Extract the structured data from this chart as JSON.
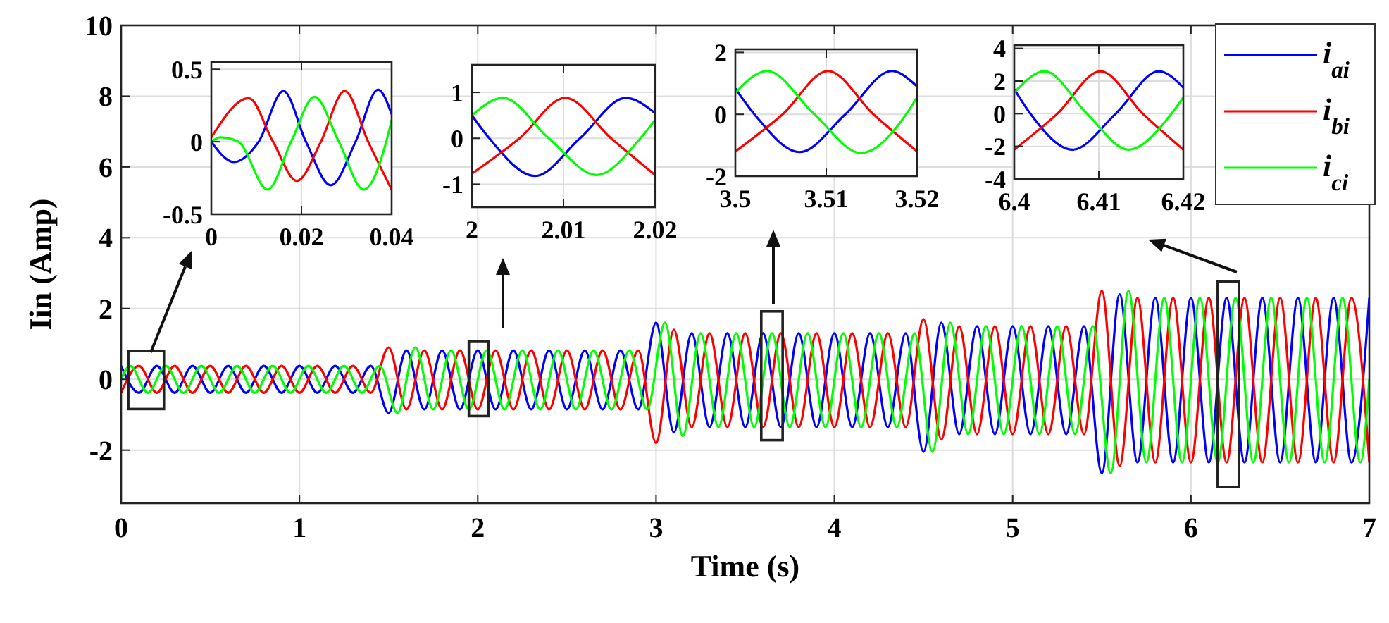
{
  "chart_data": [
    {
      "type": "line",
      "xlabel": "Time (s)",
      "ylabel": "Iin (Amp)",
      "xlim": [
        0,
        7
      ],
      "ylim": [
        -3.5,
        10
      ],
      "xticks": [
        0,
        1,
        2,
        3,
        4,
        5,
        6,
        7
      ],
      "yticks": [
        -2,
        0,
        2,
        4,
        6,
        8,
        10
      ],
      "grid": true,
      "legend": "top right",
      "x": [
        0,
        0.1,
        0.2,
        0.3,
        0.4,
        0.5,
        0.6,
        0.7,
        0.8,
        0.9,
        1,
        1.1,
        1.2,
        1.3,
        1.4,
        1.5,
        1.6,
        1.7,
        1.8,
        1.9,
        2,
        2.1,
        2.2,
        2.3,
        2.4,
        2.5,
        2.6,
        2.7,
        2.8,
        2.9,
        3,
        3.1,
        3.2,
        3.3,
        3.4,
        3.5,
        3.6,
        3.7,
        3.8,
        3.9,
        4,
        4.1,
        4.2,
        4.3,
        4.4,
        4.5,
        4.6,
        4.7,
        4.8,
        4.9,
        5,
        5.1,
        5.2,
        5.3,
        5.4,
        5.5,
        5.6,
        5.7,
        5.8,
        5.9,
        6,
        6.1,
        6.2,
        6.3,
        6.4,
        6.5,
        6.6,
        6.7,
        6.8,
        6.9,
        7
      ],
      "series": [
        {
          "name": "i$_{ai}$",
          "color": "#0000ff",
          "values": [
            0.38,
            -0.38,
            0.38,
            -0.38,
            0.38,
            -0.38,
            0.38,
            -0.38,
            0.38,
            -0.38,
            0.38,
            -0.38,
            0.38,
            -0.38,
            0.38,
            -0.95,
            0.82,
            -0.85,
            0.82,
            -0.85,
            0.82,
            -0.85,
            0.82,
            -0.85,
            0.82,
            -0.85,
            0.82,
            -0.85,
            0.82,
            -0.85,
            1.6,
            -1.5,
            1.3,
            -1.35,
            1.3,
            -1.35,
            1.3,
            -1.35,
            1.3,
            -1.35,
            1.3,
            -1.35,
            1.3,
            -1.35,
            1.3,
            -2.05,
            1.6,
            -1.55,
            1.5,
            -1.55,
            1.5,
            -1.55,
            1.5,
            -1.55,
            1.5,
            -2.65,
            2.4,
            -2.35,
            2.3,
            -2.35,
            2.3,
            -2.35,
            2.3,
            -2.35,
            2.3,
            -2.35,
            2.3,
            -2.35,
            2.3,
            -2.35,
            2.3
          ]
        },
        {
          "name": "i$_{bi}$",
          "color": "#ff0000",
          "values": [
            -0.38,
            0.38,
            -0.38,
            0.38,
            -0.38,
            0.38,
            -0.38,
            0.38,
            -0.38,
            0.38,
            -0.38,
            0.38,
            -0.38,
            0.38,
            -0.38,
            0.9,
            -0.85,
            0.82,
            -0.85,
            0.82,
            -0.85,
            0.82,
            -0.85,
            0.82,
            -0.85,
            0.82,
            -0.85,
            0.82,
            -0.85,
            0.82,
            -1.8,
            1.4,
            -1.35,
            1.3,
            -1.35,
            1.3,
            -1.35,
            1.3,
            -1.35,
            1.3,
            -1.35,
            1.3,
            -1.35,
            1.3,
            -1.35,
            1.7,
            -1.7,
            1.5,
            -1.55,
            1.5,
            -1.55,
            1.5,
            -1.55,
            1.5,
            -1.55,
            2.5,
            -2.45,
            2.3,
            -2.35,
            2.3,
            -2.35,
            2.3,
            -2.35,
            2.3,
            -2.35,
            2.3,
            -2.35,
            2.3,
            -2.35,
            2.3,
            -2.35
          ]
        },
        {
          "name": "i$_{ci}$",
          "color": "#00ff00",
          "x": [
            0,
            0.05,
            0.15,
            0.25,
            0.35,
            0.45,
            0.55,
            0.65,
            0.75,
            0.85,
            0.95,
            1.05,
            1.15,
            1.25,
            1.35,
            1.45,
            1.55,
            1.65,
            1.75,
            1.85,
            1.95,
            2.05,
            2.15,
            2.25,
            2.35,
            2.45,
            2.55,
            2.65,
            2.75,
            2.85,
            2.95,
            3.05,
            3.15,
            3.25,
            3.35,
            3.45,
            3.55,
            3.65,
            3.75,
            3.85,
            3.95,
            4.05,
            4.15,
            4.25,
            4.35,
            4.45,
            4.55,
            4.65,
            4.75,
            4.85,
            4.95,
            5.05,
            5.15,
            5.25,
            5.35,
            5.45,
            5.55,
            5.65,
            5.75,
            5.85,
            5.95,
            6.05,
            6.15,
            6.25,
            6.35,
            6.45,
            6.55,
            6.65,
            6.75,
            6.85,
            6.95,
            7
          ],
          "values": [
            0,
            0.38,
            -0.38,
            0.38,
            -0.38,
            0.38,
            -0.38,
            0.38,
            -0.38,
            0.38,
            -0.38,
            0.38,
            -0.38,
            0.38,
            -0.38,
            0.38,
            -0.95,
            0.9,
            -0.85,
            0.82,
            -0.85,
            0.82,
            -0.85,
            0.82,
            -0.85,
            0.82,
            -0.85,
            0.82,
            -0.85,
            0.82,
            -0.85,
            1.6,
            -1.6,
            1.3,
            -1.35,
            1.3,
            -1.35,
            1.3,
            -1.35,
            1.3,
            -1.35,
            1.3,
            -1.35,
            1.3,
            -1.35,
            1.3,
            -2.05,
            1.6,
            -1.55,
            1.5,
            -1.55,
            1.5,
            -1.55,
            1.5,
            -1.55,
            1.5,
            -2.65,
            2.5,
            -2.35,
            2.3,
            -2.35,
            2.3,
            -2.35,
            2.3,
            -2.35,
            2.3,
            -2.35,
            2.3,
            -2.35,
            2.3,
            -2.35,
            0
          ]
        }
      ]
    },
    {
      "type": "line",
      "xlim": [
        0,
        0.04
      ],
      "ylim": [
        -0.5,
        0.55
      ],
      "xticks": [
        0,
        0.02,
        0.04
      ],
      "yticks": [
        -0.5,
        0,
        0.5
      ],
      "grid": true,
      "series": [
        {
          "color": "#0000ff",
          "x": [
            0,
            0.005,
            0.0105,
            0.016,
            0.021,
            0.0265,
            0.032,
            0.037,
            0.04
          ],
          "values": [
            0,
            -0.14,
            0,
            0.35,
            0,
            -0.3,
            0,
            0.36,
            0.19
          ]
        },
        {
          "color": "#ff0000",
          "x": [
            0,
            0.0083,
            0.0137,
            0.019,
            0.0243,
            0.0296,
            0.0348,
            0.04
          ],
          "values": [
            0.03,
            0.3,
            0,
            -0.27,
            0,
            0.35,
            0,
            -0.33
          ]
        },
        {
          "color": "#00ff00",
          "x": [
            0,
            0.002,
            0.006,
            0.0125,
            0.0177,
            0.0229,
            0.0283,
            0.0338,
            0.0388,
            0.04
          ],
          "values": [
            0,
            0.03,
            0,
            -0.33,
            0,
            0.31,
            0,
            -0.33,
            0,
            0.15
          ]
        }
      ]
    },
    {
      "type": "line",
      "xlim": [
        2,
        2.02
      ],
      "ylim": [
        -1.5,
        1.6
      ],
      "xticks": [
        2,
        2.01,
        2.02
      ],
      "yticks": [
        -1,
        0,
        1
      ],
      "grid": true,
      "series": [
        {
          "color": "#0000ff",
          "x": [
            2,
            2.0019,
            2.0069,
            2.0118,
            2.0168,
            2.02
          ],
          "values": [
            0.5,
            0,
            -0.82,
            0,
            0.88,
            0.55
          ]
        },
        {
          "color": "#ff0000",
          "x": [
            2,
            2.0052,
            2.0102,
            2.0152,
            2.02
          ],
          "values": [
            -0.77,
            0,
            0.88,
            0,
            -0.8
          ]
        },
        {
          "color": "#00ff00",
          "x": [
            2,
            2.0034,
            2.0084,
            2.0136,
            2.0184,
            2.02
          ],
          "values": [
            0.5,
            0.88,
            0,
            -0.8,
            0,
            0.4
          ]
        }
      ]
    },
    {
      "type": "line",
      "xlim": [
        3.5,
        3.52
      ],
      "ylim": [
        -2,
        2.1
      ],
      "xticks": [
        3.5,
        3.51,
        3.52
      ],
      "yticks": [
        -2,
        0,
        2
      ],
      "grid": true,
      "series": [
        {
          "color": "#0000ff",
          "x": [
            3.5,
            3.5021,
            3.5071,
            3.5121,
            3.5172,
            3.52
          ],
          "values": [
            0.83,
            0,
            -1.22,
            0,
            1.4,
            0.9
          ]
        },
        {
          "color": "#ff0000",
          "x": [
            3.5,
            3.5052,
            3.5102,
            3.5152,
            3.52
          ],
          "values": [
            -1.2,
            0,
            1.4,
            0,
            -1.2
          ]
        },
        {
          "color": "#00ff00",
          "x": [
            3.5,
            3.5035,
            3.5087,
            3.5138,
            3.5188,
            3.52
          ],
          "values": [
            0.7,
            1.4,
            0,
            -1.25,
            0,
            0.55
          ]
        }
      ]
    },
    {
      "type": "line",
      "xlim": [
        6.4,
        6.42
      ],
      "ylim": [
        -4,
        4.2
      ],
      "xticks": [
        6.4,
        6.41,
        6.42
      ],
      "yticks": [
        -4,
        -2,
        0,
        2,
        4
      ],
      "grid": true,
      "series": [
        {
          "color": "#0000ff",
          "x": [
            6.4,
            6.4019,
            6.4069,
            6.412,
            6.4171,
            6.42
          ],
          "values": [
            1.5,
            0,
            -2.2,
            0,
            2.6,
            1.6
          ]
        },
        {
          "color": "#ff0000",
          "x": [
            6.4,
            6.4051,
            6.4102,
            6.4152,
            6.42
          ],
          "values": [
            -2.2,
            0,
            2.6,
            0,
            -2.2
          ]
        },
        {
          "color": "#00ff00",
          "x": [
            6.4,
            6.4036,
            6.4086,
            6.4135,
            6.4186,
            6.42
          ],
          "values": [
            1.3,
            2.6,
            0,
            -2.2,
            0,
            1
          ]
        }
      ]
    }
  ]
}
